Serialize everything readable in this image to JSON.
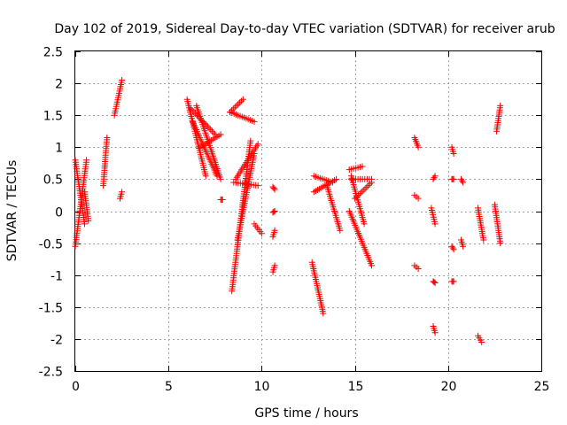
{
  "chart_data": {
    "type": "scatter",
    "title": "Day 102 of 2019, Sidereal Day-to-day VTEC variation (SDTVAR) for receiver arub",
    "xlabel": "GPS time / hours",
    "ylabel": "SDTVAR / TECUs",
    "xlim": [
      0,
      25
    ],
    "ylim": [
      -2.5,
      2.5
    ],
    "xticks": [
      0,
      5,
      10,
      15,
      20,
      25
    ],
    "yticks": [
      -2.5,
      -2,
      -1.5,
      -1,
      -0.5,
      0,
      0.5,
      1,
      1.5,
      2,
      2.5
    ],
    "grid": true,
    "marker": "+",
    "color": "#ff0000",
    "series": [
      {
        "name": "SDTVAR",
        "segments": [
          {
            "x": [
              0.0,
              0.6
            ],
            "y": [
              -0.55,
              0.8
            ]
          },
          {
            "x": [
              0.0,
              0.5
            ],
            "y": [
              0.8,
              -0.2
            ]
          },
          {
            "x": [
              0.5,
              0.7
            ],
            "y": [
              0.3,
              -0.15
            ]
          },
          {
            "x": [
              1.5,
              1.7
            ],
            "y": [
              0.4,
              1.15
            ]
          },
          {
            "x": [
              2.1,
              2.5
            ],
            "y": [
              1.5,
              2.05
            ]
          },
          {
            "x": [
              2.4,
              2.5
            ],
            "y": [
              0.2,
              0.3
            ]
          },
          {
            "x": [
              6.0,
              7.0
            ],
            "y": [
              1.75,
              0.55
            ]
          },
          {
            "x": [
              6.2,
              7.5
            ],
            "y": [
              1.6,
              1.2
            ]
          },
          {
            "x": [
              6.3,
              7.6
            ],
            "y": [
              1.4,
              0.55
            ]
          },
          {
            "x": [
              6.5,
              7.8
            ],
            "y": [
              1.65,
              0.5
            ]
          },
          {
            "x": [
              6.7,
              7.8
            ],
            "y": [
              1.0,
              1.2
            ]
          },
          {
            "x": [
              7.8,
              7.9
            ],
            "y": [
              0.18,
              0.18
            ]
          },
          {
            "x": [
              8.3,
              9.6
            ],
            "y": [
              1.55,
              1.4
            ]
          },
          {
            "x": [
              8.3,
              9.0
            ],
            "y": [
              1.55,
              1.75
            ]
          },
          {
            "x": [
              8.4,
              9.4
            ],
            "y": [
              -1.25,
              1.1
            ]
          },
          {
            "x": [
              8.5,
              9.8
            ],
            "y": [
              0.45,
              0.4
            ]
          },
          {
            "x": [
              8.6,
              9.8
            ],
            "y": [
              0.5,
              1.05
            ]
          },
          {
            "x": [
              8.7,
              9.6
            ],
            "y": [
              -0.45,
              0.9
            ]
          },
          {
            "x": [
              9.6,
              10.0
            ],
            "y": [
              -0.2,
              -0.35
            ]
          },
          {
            "x": [
              10.6,
              10.7
            ],
            "y": [
              -0.4,
              -0.3
            ]
          },
          {
            "x": [
              10.6,
              10.7
            ],
            "y": [
              0.38,
              0.34
            ]
          },
          {
            "x": [
              10.6,
              10.7
            ],
            "y": [
              -0.02,
              0.0
            ]
          },
          {
            "x": [
              10.6,
              10.7
            ],
            "y": [
              -0.95,
              -0.85
            ]
          },
          {
            "x": [
              12.7,
              13.3
            ],
            "y": [
              -0.8,
              -1.6
            ]
          },
          {
            "x": [
              12.8,
              13.8
            ],
            "y": [
              0.55,
              0.45
            ]
          },
          {
            "x": [
              12.8,
              14.0
            ],
            "y": [
              0.3,
              0.5
            ]
          },
          {
            "x": [
              13.5,
              14.2
            ],
            "y": [
              0.4,
              -0.3
            ]
          },
          {
            "x": [
              14.7,
              15.9
            ],
            "y": [
              0.0,
              -0.85
            ]
          },
          {
            "x": [
              14.8,
              15.9
            ],
            "y": [
              0.5,
              0.5
            ]
          },
          {
            "x": [
              14.8,
              15.5
            ],
            "y": [
              0.55,
              -0.2
            ]
          },
          {
            "x": [
              14.7,
              15.4
            ],
            "y": [
              0.65,
              0.7
            ]
          },
          {
            "x": [
              15.0,
              15.9
            ],
            "y": [
              0.2,
              0.45
            ]
          },
          {
            "x": [
              18.2,
              18.4
            ],
            "y": [
              1.15,
              1.0
            ]
          },
          {
            "x": [
              18.2,
              18.4
            ],
            "y": [
              0.25,
              0.2
            ]
          },
          {
            "x": [
              18.2,
              18.4
            ],
            "y": [
              -0.85,
              -0.9
            ]
          },
          {
            "x": [
              19.1,
              19.3
            ],
            "y": [
              0.05,
              -0.2
            ]
          },
          {
            "x": [
              19.2,
              19.3
            ],
            "y": [
              0.5,
              0.55
            ]
          },
          {
            "x": [
              19.2,
              19.3
            ],
            "y": [
              -1.1,
              -1.12
            ]
          },
          {
            "x": [
              19.2,
              19.3
            ],
            "y": [
              -1.8,
              -1.9
            ]
          },
          {
            "x": [
              20.2,
              20.3
            ],
            "y": [
              1.0,
              0.9
            ]
          },
          {
            "x": [
              20.2,
              20.3
            ],
            "y": [
              0.5,
              0.5
            ]
          },
          {
            "x": [
              20.2,
              20.3
            ],
            "y": [
              -0.55,
              -0.6
            ]
          },
          {
            "x": [
              20.2,
              20.3
            ],
            "y": [
              -1.1,
              -1.1
            ]
          },
          {
            "x": [
              20.7,
              20.8
            ],
            "y": [
              0.5,
              0.45
            ]
          },
          {
            "x": [
              20.7,
              20.8
            ],
            "y": [
              -0.45,
              -0.55
            ]
          },
          {
            "x": [
              21.6,
              21.9
            ],
            "y": [
              0.05,
              -0.45
            ]
          },
          {
            "x": [
              21.6,
              21.8
            ],
            "y": [
              -1.95,
              -2.05
            ]
          },
          {
            "x": [
              22.5,
              22.8
            ],
            "y": [
              0.1,
              -0.5
            ]
          },
          {
            "x": [
              22.6,
              22.8
            ],
            "y": [
              1.25,
              1.65
            ]
          }
        ]
      }
    ]
  }
}
